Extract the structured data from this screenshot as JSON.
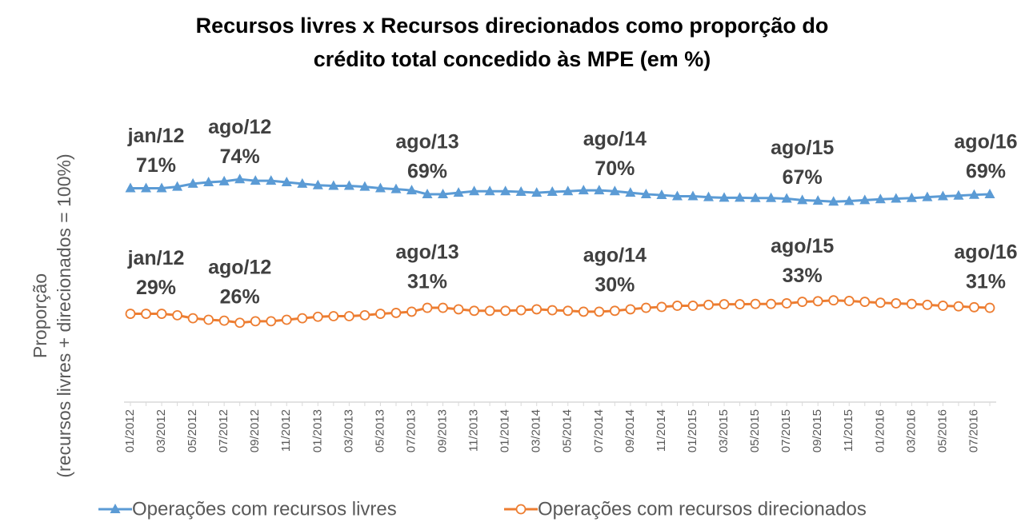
{
  "chart_data": {
    "type": "line",
    "title": [
      "Recursos livres x Recursos direcionados como proporção do",
      "crédito total concedido às MPE (em %)"
    ],
    "y_label": [
      "Proporção",
      "(recursos livres + direcionados = 100%)"
    ],
    "categories": [
      "01/2012",
      null,
      "03/2012",
      null,
      "05/2012",
      null,
      "07/2012",
      null,
      "09/2012",
      null,
      "11/2012",
      null,
      "01/2013",
      null,
      "03/2013",
      null,
      "05/2013",
      null,
      "07/2013",
      null,
      "09/2013",
      null,
      "11/2013",
      null,
      "01/2014",
      null,
      "03/2014",
      null,
      "05/2014",
      null,
      "07/2014",
      null,
      "09/2014",
      null,
      "11/2014",
      null,
      "01/2015",
      null,
      "03/2015",
      null,
      "05/2015",
      null,
      "07/2015",
      null,
      "09/2015",
      null,
      "11/2015",
      null,
      "01/2016",
      null,
      "03/2016",
      null,
      "05/2016",
      null,
      "07/2016",
      null
    ],
    "ylim": [
      0,
      100
    ],
    "legend": "bottom",
    "series": [
      {
        "name": "Operações com recursos livres",
        "color": "#5b9bd5",
        "marker": "triangle",
        "values": [
          71,
          71,
          71,
          71.5,
          72.5,
          73,
          73.3,
          74,
          73.5,
          73.5,
          73,
          72.5,
          72,
          71.8,
          71.8,
          71.5,
          71,
          70.7,
          70.3,
          69,
          69,
          69.5,
          70,
          70,
          70,
          69.8,
          69.5,
          69.8,
          70,
          70.3,
          70.3,
          70,
          69.5,
          69,
          68.7,
          68.3,
          68.3,
          68,
          67.8,
          67.8,
          67.7,
          67.7,
          67.5,
          67,
          66.8,
          66.5,
          66.7,
          67,
          67.3,
          67.5,
          67.7,
          68,
          68.3,
          68.5,
          68.8,
          69
        ],
        "point_labels": [
          "jan/12",
          null,
          null,
          null,
          null,
          null,
          null,
          "ago/12",
          null,
          null,
          null,
          null,
          null,
          null,
          null,
          null,
          null,
          null,
          null,
          "ago/13",
          null,
          null,
          null,
          null,
          null,
          null,
          null,
          null,
          null,
          null,
          null,
          "ago/14",
          null,
          null,
          null,
          null,
          null,
          null,
          null,
          null,
          null,
          null,
          null,
          "ago/15",
          null,
          null,
          null,
          null,
          null,
          null,
          null,
          null,
          null,
          null,
          null,
          "ago/16"
        ],
        "value_labels": [
          "71%",
          null,
          null,
          null,
          null,
          null,
          null,
          "74%",
          null,
          null,
          null,
          null,
          null,
          null,
          null,
          null,
          null,
          null,
          null,
          "69%",
          null,
          null,
          null,
          null,
          null,
          null,
          null,
          null,
          null,
          null,
          null,
          "70%",
          null,
          null,
          null,
          null,
          null,
          null,
          null,
          null,
          null,
          null,
          null,
          "67%",
          null,
          null,
          null,
          null,
          null,
          null,
          null,
          null,
          null,
          null,
          null,
          "69%"
        ]
      },
      {
        "name": "Operações com recursos direcionados",
        "color": "#ed7d31",
        "marker": "circle",
        "values": [
          29,
          29,
          29,
          28.5,
          27.5,
          27,
          26.7,
          26,
          26.5,
          26.5,
          27,
          27.5,
          28,
          28.2,
          28.2,
          28.5,
          29,
          29.3,
          29.7,
          31,
          31,
          30.5,
          30,
          30,
          30,
          30.2,
          30.5,
          30.2,
          30,
          29.7,
          29.7,
          30,
          30.5,
          31,
          31.3,
          31.7,
          31.7,
          32,
          32.2,
          32.2,
          32.3,
          32.3,
          32.5,
          33,
          33.2,
          33.5,
          33.3,
          33,
          32.7,
          32.5,
          32.3,
          32,
          31.7,
          31.5,
          31.2,
          31
        ],
        "point_labels": [
          "jan/12",
          null,
          null,
          null,
          null,
          null,
          null,
          "ago/12",
          null,
          null,
          null,
          null,
          null,
          null,
          null,
          null,
          null,
          null,
          null,
          "ago/13",
          null,
          null,
          null,
          null,
          null,
          null,
          null,
          null,
          null,
          null,
          null,
          "ago/14",
          null,
          null,
          null,
          null,
          null,
          null,
          null,
          null,
          null,
          null,
          null,
          "ago/15",
          null,
          null,
          null,
          null,
          null,
          null,
          null,
          null,
          null,
          null,
          null,
          "ago/16"
        ],
        "value_labels": [
          "29%",
          null,
          null,
          null,
          null,
          null,
          null,
          "26%",
          null,
          null,
          null,
          null,
          null,
          null,
          null,
          null,
          null,
          null,
          null,
          "31%",
          null,
          null,
          null,
          null,
          null,
          null,
          null,
          null,
          null,
          null,
          null,
          "30%",
          null,
          null,
          null,
          null,
          null,
          null,
          null,
          null,
          null,
          null,
          null,
          "33%",
          null,
          null,
          null,
          null,
          null,
          null,
          null,
          null,
          null,
          null,
          null,
          "31%"
        ]
      }
    ]
  }
}
